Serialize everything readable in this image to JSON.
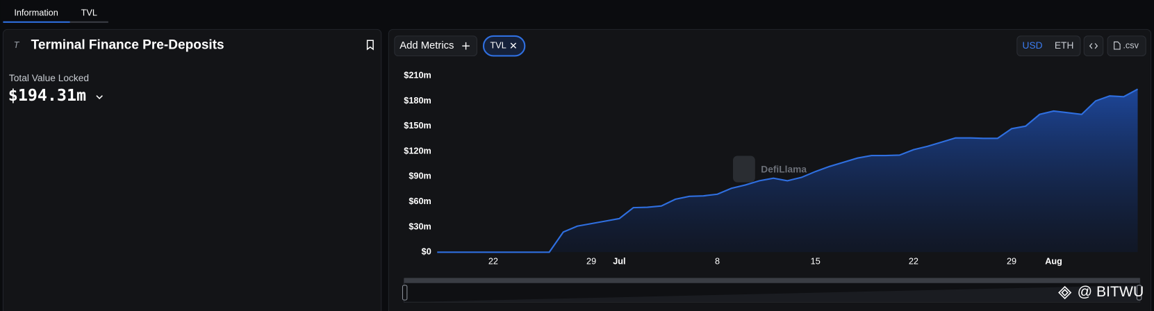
{
  "tabs": [
    "Information",
    "TVL"
  ],
  "header": {
    "title": "Terminal Finance Pre-Deposits"
  },
  "metric": {
    "label": "Total Value Locked",
    "value": "$194.31m"
  },
  "toolbar": {
    "add_metrics": "Add Metrics",
    "currency": [
      "USD",
      "ETH"
    ],
    "csv": ".csv"
  },
  "watermarks": [
    "DefiLlama",
    "@ BITWU"
  ],
  "chart_data": {
    "type": "area",
    "x": [
      "06-18",
      "06-19",
      "06-20",
      "06-21",
      "06-22",
      "06-23",
      "06-24",
      "06-25",
      "06-26",
      "06-27",
      "06-28",
      "06-29",
      "06-30",
      "07-01",
      "07-02",
      "07-03",
      "07-04",
      "07-05",
      "07-06",
      "07-07",
      "07-08",
      "07-09",
      "07-10",
      "07-11",
      "07-12",
      "07-13",
      "07-14",
      "07-15",
      "07-16",
      "07-17",
      "07-18",
      "07-19",
      "07-20",
      "07-21",
      "07-22",
      "07-23",
      "07-24",
      "07-25",
      "07-26",
      "07-27",
      "07-28",
      "07-29",
      "07-30",
      "07-31",
      "08-01",
      "08-02",
      "08-03",
      "08-04",
      "08-05",
      "08-06",
      "08-07"
    ],
    "series": [
      {
        "name": "TVL",
        "color": "#2f6fe0",
        "values": [
          0,
          0,
          0,
          0,
          0,
          0,
          0,
          0,
          0,
          24,
          31,
          34,
          37,
          40,
          53,
          53.5,
          55,
          63,
          66.5,
          67,
          69,
          76,
          80,
          85,
          88,
          85,
          89,
          96,
          102,
          107,
          112,
          115,
          115,
          115.5,
          122,
          126,
          131,
          136,
          136,
          135.5,
          135.5,
          147,
          150,
          164,
          168,
          166,
          164,
          180,
          186,
          185,
          194
        ]
      }
    ],
    "xlim": [
      "06-18",
      "08-07"
    ],
    "xticks": [
      {
        "value": "06-22",
        "label": "22"
      },
      {
        "value": "06-29",
        "label": "29"
      },
      {
        "value": "07-01",
        "label": "Jul"
      },
      {
        "value": "07-08",
        "label": "8"
      },
      {
        "value": "07-15",
        "label": "15"
      },
      {
        "value": "07-22",
        "label": "22"
      },
      {
        "value": "07-29",
        "label": "29"
      },
      {
        "value": "08-01",
        "label": "Aug"
      }
    ],
    "ylim": [
      0,
      210
    ],
    "yticks": [
      {
        "value": 0,
        "label": "$0"
      },
      {
        "value": 30,
        "label": "$30m"
      },
      {
        "value": 60,
        "label": "$60m"
      },
      {
        "value": 90,
        "label": "$90m"
      },
      {
        "value": 120,
        "label": "$120m"
      },
      {
        "value": 150,
        "label": "$150m"
      },
      {
        "value": 180,
        "label": "$180m"
      },
      {
        "value": 210,
        "label": "$210m"
      }
    ],
    "grid": false
  }
}
